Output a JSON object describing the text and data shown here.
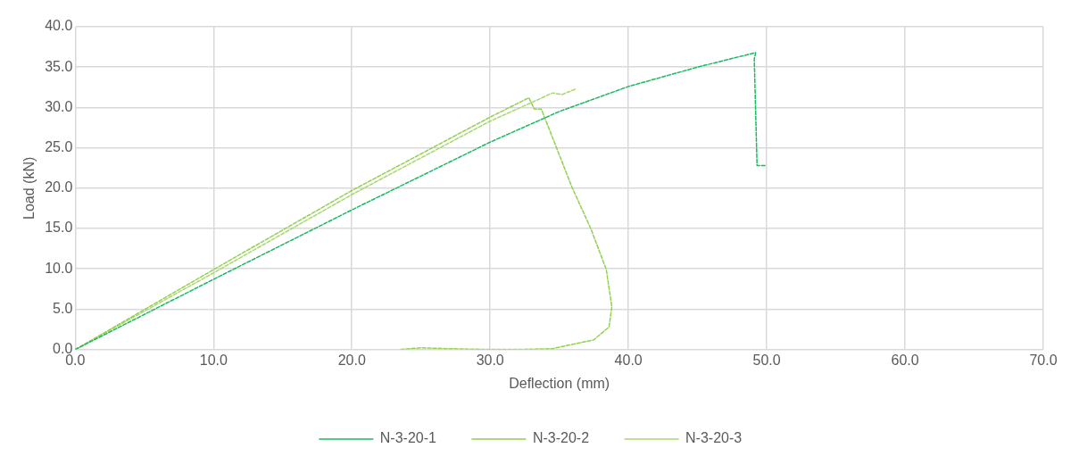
{
  "chart_data": {
    "type": "line",
    "xlabel": "Deflection (mm)",
    "ylabel": "Load (kN)",
    "xlim": [
      0,
      70
    ],
    "xticks": [
      {
        "value": 0,
        "label": "0.0"
      },
      {
        "value": 10,
        "label": "10.0"
      },
      {
        "value": 20,
        "label": "20.0"
      },
      {
        "value": 30,
        "label": "30.0"
      },
      {
        "value": 40,
        "label": "40.0"
      },
      {
        "value": 50,
        "label": "50.0"
      },
      {
        "value": 60,
        "label": "60.0"
      },
      {
        "value": 70,
        "label": "70.0"
      }
    ],
    "ylim": [
      0,
      40
    ],
    "yticks": [
      {
        "value": 0,
        "label": "0.0"
      },
      {
        "value": 5,
        "label": "5.0"
      },
      {
        "value": 10,
        "label": "10.0"
      },
      {
        "value": 15,
        "label": "15.0"
      },
      {
        "value": 20,
        "label": "20.0"
      },
      {
        "value": 25,
        "label": "25.0"
      },
      {
        "value": 30,
        "label": "30.0"
      },
      {
        "value": 35,
        "label": "35.0"
      },
      {
        "value": 40,
        "label": "40.0"
      }
    ],
    "grid": true,
    "legend": "bottom",
    "marker": "none",
    "line_style": "dashed",
    "series": [
      {
        "name": "N-3-20-1",
        "color": "#1db862",
        "x": [
          0,
          10,
          20,
          30,
          35,
          40,
          45,
          49.2,
          49.1,
          49.3,
          50
        ],
        "values": [
          0,
          8.7,
          17.3,
          25.7,
          29.5,
          32.6,
          35.0,
          36.8,
          36.0,
          22.8,
          22.8
        ]
      },
      {
        "name": "N-3-20-2",
        "color": "#92d050",
        "x": [
          0,
          10,
          20,
          30,
          32.8,
          33.2,
          33.7,
          34.0,
          35.9,
          37.3,
          38.4,
          38.8,
          38.6,
          37.5,
          34.5,
          32,
          30,
          27,
          25,
          23.5
        ],
        "values": [
          0,
          9.9,
          19.7,
          28.8,
          31.2,
          29.8,
          29.8,
          28.5,
          20.2,
          14.9,
          9.9,
          5.3,
          2.8,
          1.2,
          0.1,
          0,
          0,
          0.1,
          0.2,
          0
        ]
      },
      {
        "name": "N-3-20-3",
        "color": "#a9d86e",
        "x": [
          0,
          10,
          20,
          30,
          33.5,
          34.5,
          35.2,
          36.2
        ],
        "values": [
          0,
          9.5,
          19.2,
          28.3,
          31.0,
          31.8,
          31.6,
          32.3
        ]
      }
    ]
  }
}
